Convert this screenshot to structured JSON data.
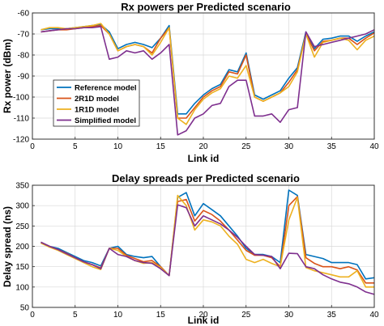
{
  "chart_data": [
    {
      "type": "line",
      "title": "Rx powers per Predicted scenario",
      "xlabel": "Link id",
      "ylabel": "Rx power (dBm)",
      "xlim": [
        0,
        40
      ],
      "ylim": [
        -120,
        -60
      ],
      "xticks": [
        0,
        5,
        10,
        15,
        20,
        25,
        30,
        35,
        40
      ],
      "yticks": [
        -120,
        -110,
        -100,
        -90,
        -80,
        -70,
        -60
      ],
      "grid": true,
      "legend": "bottom-left",
      "x": [
        1,
        2,
        3,
        4,
        5,
        6,
        7,
        8,
        9,
        10,
        11,
        12,
        13,
        14,
        15,
        16,
        17,
        18,
        19,
        20,
        21,
        22,
        23,
        24,
        25,
        26,
        27,
        28,
        29,
        30,
        31,
        32,
        33,
        34,
        35,
        36,
        37,
        38,
        39,
        40
      ],
      "series": [
        {
          "name": "Reference model",
          "color": "#0072BD",
          "values": [
            -68,
            -67.5,
            -67.5,
            -67.5,
            -67,
            -66.5,
            -66,
            -65.5,
            -69,
            -77,
            -75,
            -74,
            -75,
            -76.5,
            -72,
            -66,
            -108,
            -108,
            -103,
            -99,
            -96,
            -94,
            -87,
            -88,
            -79,
            -99,
            -101,
            -99,
            -97,
            -91,
            -86,
            -69,
            -77,
            -72.5,
            -72,
            -71,
            -71,
            -73.5,
            -71,
            -69
          ]
        },
        {
          "name": "2R1D model",
          "color": "#D95319",
          "values": [
            -69,
            -68.5,
            -68,
            -68,
            -67.5,
            -67,
            -66.5,
            -66,
            -70,
            -78,
            -76,
            -75,
            -76,
            -79,
            -72,
            -67,
            -110,
            -110,
            -105,
            -100,
            -97,
            -95,
            -88,
            -89,
            -80,
            -100,
            -102,
            -100,
            -98,
            -93,
            -87,
            -70,
            -78,
            -73.5,
            -73,
            -72,
            -72,
            -75,
            -72,
            -69.5
          ]
        },
        {
          "name": "1R1D model",
          "color": "#EDB120",
          "values": [
            -68,
            -67,
            -67,
            -67.5,
            -67,
            -66.5,
            -66,
            -65,
            -70,
            -78,
            -76,
            -75,
            -76,
            -80,
            -74,
            -67,
            -110,
            -113,
            -106,
            -101,
            -98,
            -96,
            -90,
            -91,
            -85,
            -100,
            -102,
            -100,
            -98,
            -95,
            -88,
            -70,
            -81,
            -74,
            -73,
            -72,
            -73,
            -77.5,
            -73,
            -71
          ]
        },
        {
          "name": "Simplified model",
          "color": "#7E2F8E",
          "values": [
            -69,
            -68.5,
            -68,
            -67.5,
            -67.5,
            -67,
            -67,
            -66.5,
            -82,
            -81,
            -78,
            -79,
            -78,
            -82,
            -79,
            -75,
            -118,
            -116,
            -110,
            -108,
            -104,
            -103,
            -95,
            -92,
            -92,
            -109,
            -109,
            -108,
            -112,
            -106,
            -105,
            -69,
            -76,
            -75,
            -74,
            -73,
            -72,
            -71,
            -70,
            -68
          ]
        }
      ]
    },
    {
      "type": "line",
      "title": "Delay spreads per Predicted scenario",
      "xlabel": "Link id",
      "ylabel": "Delay spread (ns)",
      "xlim": [
        0,
        40
      ],
      "ylim": [
        50,
        350
      ],
      "xticks": [
        0,
        5,
        10,
        15,
        20,
        25,
        30,
        35,
        40
      ],
      "yticks": [
        50,
        100,
        150,
        200,
        250,
        300,
        350
      ],
      "grid": true,
      "x": [
        1,
        2,
        3,
        4,
        5,
        6,
        7,
        8,
        9,
        10,
        11,
        12,
        13,
        14,
        15,
        16,
        17,
        18,
        19,
        20,
        21,
        22,
        23,
        24,
        25,
        26,
        27,
        28,
        29,
        30,
        31,
        32,
        33,
        34,
        35,
        36,
        37,
        38,
        39,
        40
      ],
      "series": [
        {
          "name": "Reference model",
          "color": "#0072BD",
          "values": [
            210,
            200,
            195,
            185,
            175,
            165,
            160,
            152,
            195,
            200,
            180,
            175,
            172,
            175,
            150,
            128,
            320,
            332,
            275,
            305,
            290,
            275,
            250,
            225,
            195,
            180,
            180,
            175,
            160,
            338,
            325,
            180,
            175,
            170,
            160,
            160,
            160,
            155,
            120,
            123
          ]
        },
        {
          "name": "2R1D model",
          "color": "#D95319",
          "values": [
            210,
            200,
            192,
            183,
            172,
            162,
            155,
            147,
            195,
            195,
            178,
            170,
            162,
            165,
            150,
            128,
            310,
            315,
            262,
            288,
            278,
            262,
            240,
            215,
            190,
            178,
            178,
            172,
            150,
            300,
            322,
            172,
            158,
            150,
            150,
            145,
            150,
            142,
            110,
            110
          ]
        },
        {
          "name": "1R1D model",
          "color": "#EDB120",
          "values": [
            208,
            198,
            190,
            180,
            170,
            160,
            150,
            143,
            195,
            190,
            175,
            165,
            158,
            160,
            148,
            128,
            325,
            300,
            240,
            265,
            260,
            250,
            225,
            205,
            168,
            160,
            168,
            158,
            150,
            265,
            320,
            148,
            140,
            135,
            130,
            125,
            125,
            140,
            100,
            100
          ]
        },
        {
          "name": "Simplified model",
          "color": "#7E2F8E",
          "values": [
            210,
            200,
            192,
            182,
            172,
            162,
            155,
            145,
            195,
            180,
            175,
            165,
            160,
            158,
            145,
            128,
            302,
            295,
            250,
            275,
            265,
            255,
            240,
            222,
            200,
            180,
            178,
            175,
            145,
            183,
            182,
            150,
            145,
            130,
            120,
            112,
            108,
            100,
            88,
            82
          ]
        }
      ]
    }
  ]
}
